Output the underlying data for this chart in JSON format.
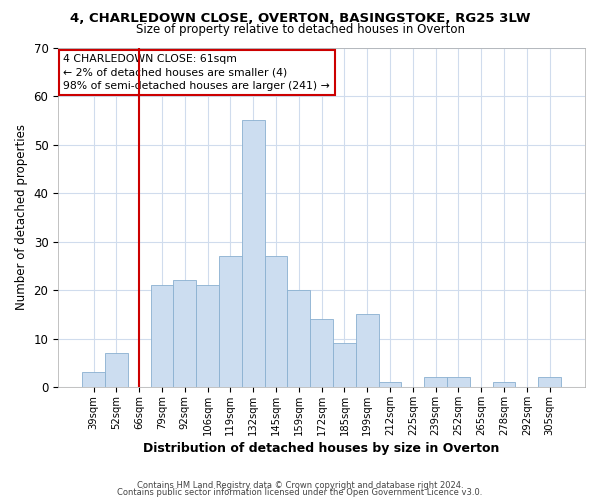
{
  "title": "4, CHARLEDOWN CLOSE, OVERTON, BASINGSTOKE, RG25 3LW",
  "subtitle": "Size of property relative to detached houses in Overton",
  "xlabel": "Distribution of detached houses by size in Overton",
  "ylabel": "Number of detached properties",
  "bar_color": "#ccddf0",
  "bar_edge_color": "#8ab0d0",
  "categories": [
    "39sqm",
    "52sqm",
    "66sqm",
    "79sqm",
    "92sqm",
    "106sqm",
    "119sqm",
    "132sqm",
    "145sqm",
    "159sqm",
    "172sqm",
    "185sqm",
    "199sqm",
    "212sqm",
    "225sqm",
    "239sqm",
    "252sqm",
    "265sqm",
    "278sqm",
    "292sqm",
    "305sqm"
  ],
  "values": [
    3,
    7,
    0,
    21,
    22,
    21,
    27,
    55,
    27,
    20,
    14,
    9,
    15,
    1,
    0,
    2,
    2,
    0,
    1,
    0,
    2
  ],
  "ylim": [
    0,
    70
  ],
  "yticks": [
    0,
    10,
    20,
    30,
    40,
    50,
    60,
    70
  ],
  "vline_x_index": 2,
  "vline_color": "#cc0000",
  "annotation_line1": "4 CHARLEDOWN CLOSE: 61sqm",
  "annotation_line2": "← 2% of detached houses are smaller (4)",
  "annotation_line3": "98% of semi-detached houses are larger (241) →",
  "annotation_box_color": "#ffffff",
  "annotation_box_edge": "#cc0000",
  "footer1": "Contains HM Land Registry data © Crown copyright and database right 2024.",
  "footer2": "Contains public sector information licensed under the Open Government Licence v3.0.",
  "background_color": "#ffffff",
  "grid_color": "#d0dced"
}
